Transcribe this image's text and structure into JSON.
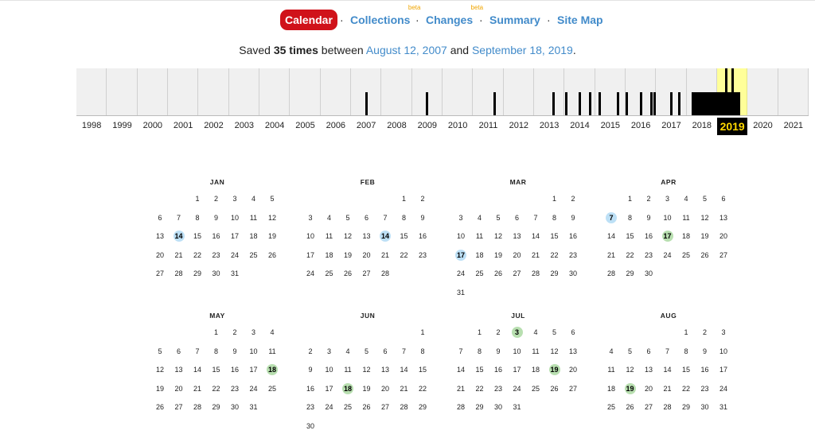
{
  "nav": {
    "items": [
      {
        "label": "Calendar",
        "active": true,
        "sup": ""
      },
      {
        "label": "Collections",
        "active": false,
        "sup": "beta"
      },
      {
        "label": "Changes",
        "active": false,
        "sup": "beta"
      },
      {
        "label": "Summary",
        "active": false,
        "sup": ""
      },
      {
        "label": "Site Map",
        "active": false,
        "sup": ""
      }
    ],
    "separator": "·"
  },
  "saved": {
    "prefix": "Saved",
    "count": "35 times",
    "between": "between",
    "start": "August 12, 2007",
    "and": "and",
    "end": "September 18, 2019",
    "suffix": "."
  },
  "timeline": {
    "years": [
      "1998",
      "1999",
      "2000",
      "2001",
      "2002",
      "2003",
      "2004",
      "2005",
      "2006",
      "2007",
      "2008",
      "2009",
      "2010",
      "2011",
      "2012",
      "2013",
      "2014",
      "2015",
      "2016",
      "2017",
      "2018",
      "2019",
      "2020",
      "2021"
    ],
    "selected_year": "2019",
    "colors": {
      "selected_bg": "#ffff99",
      "bar": "#000000",
      "selected_label_bg": "#000000",
      "selected_label_fg": "#ffd700"
    },
    "activity": [
      {
        "year": "2007",
        "fraction": 0.5,
        "level": 0.5
      },
      {
        "year": "2009",
        "fraction": 0.5,
        "level": 0.5
      },
      {
        "year": "2011",
        "fraction": 0.7,
        "level": 0.5
      },
      {
        "year": "2013",
        "fraction": 0.65,
        "level": 0.5
      },
      {
        "year": "2014",
        "fraction": 0.05,
        "level": 0.5
      },
      {
        "year": "2014",
        "fraction": 0.5,
        "level": 0.5
      },
      {
        "year": "2014",
        "fraction": 0.85,
        "level": 0.5
      },
      {
        "year": "2015",
        "fraction": 0.15,
        "level": 0.5
      },
      {
        "year": "2015",
        "fraction": 0.75,
        "level": 0.5
      },
      {
        "year": "2016",
        "fraction": 0.05,
        "level": 0.5
      },
      {
        "year": "2016",
        "fraction": 0.5,
        "level": 0.5
      },
      {
        "year": "2016",
        "fraction": 0.85,
        "level": 0.5
      },
      {
        "year": "2016",
        "fraction": 0.95,
        "level": 0.5
      },
      {
        "year": "2017",
        "fraction": 0.5,
        "level": 0.5
      },
      {
        "year": "2017",
        "fraction": 0.75,
        "level": 0.5
      },
      {
        "year": "2018",
        "fraction": 0.2,
        "level": 0.5
      },
      {
        "year": "2019",
        "fraction": 0.3,
        "level": 1.0
      },
      {
        "year": "2019",
        "fraction": 0.5,
        "level": 1.0
      }
    ],
    "filled_spans": [
      {
        "year": "2018",
        "from": 0.25,
        "to": 1.0,
        "level": 0.5
      },
      {
        "year": "2019",
        "from": 0.0,
        "to": 0.75,
        "level": 0.5
      }
    ]
  },
  "calendar": {
    "colors": {
      "blue": "#bde0f6",
      "green": "#b8dfb0"
    },
    "months": [
      {
        "name": "JAN",
        "start_dow": 2,
        "days": 31,
        "highlights": [
          {
            "day": 14,
            "color": "blue"
          }
        ]
      },
      {
        "name": "FEB",
        "start_dow": 5,
        "days": 28,
        "highlights": [
          {
            "day": 14,
            "color": "blue"
          }
        ]
      },
      {
        "name": "MAR",
        "start_dow": 5,
        "days": 31,
        "highlights": [
          {
            "day": 17,
            "color": "blue"
          }
        ]
      },
      {
        "name": "APR",
        "start_dow": 1,
        "days": 30,
        "highlights": [
          {
            "day": 7,
            "color": "blue"
          },
          {
            "day": 17,
            "color": "green"
          }
        ]
      },
      {
        "name": "MAY",
        "start_dow": 3,
        "days": 31,
        "highlights": [
          {
            "day": 18,
            "color": "green"
          }
        ]
      },
      {
        "name": "JUN",
        "start_dow": 6,
        "days": 30,
        "highlights": [
          {
            "day": 18,
            "color": "green"
          }
        ]
      },
      {
        "name": "JUL",
        "start_dow": 1,
        "days": 31,
        "highlights": [
          {
            "day": 3,
            "color": "green"
          },
          {
            "day": 19,
            "color": "green"
          }
        ]
      },
      {
        "name": "AUG",
        "start_dow": 4,
        "days": 31,
        "highlights": [
          {
            "day": 19,
            "color": "green"
          }
        ]
      }
    ]
  }
}
